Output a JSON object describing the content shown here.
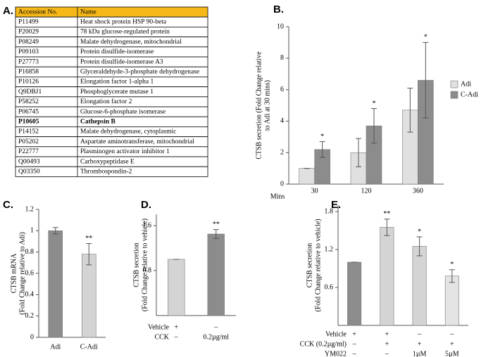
{
  "table": {
    "title": "A.",
    "header": [
      "Accession No.",
      "Name"
    ],
    "header_color": "#f5b818",
    "highlight_row": 10,
    "highlight_color": "#e02020",
    "rows": [
      [
        "P11499",
        "Heat shock protein HSP 90-beta"
      ],
      [
        "P20029",
        "78 kDa glucose-regulated protein"
      ],
      [
        "P08249",
        "Malate dehydrogenase, mitochondrial"
      ],
      [
        "P09103",
        "Protein disulfide-isomerase"
      ],
      [
        "P27773",
        "Protein disulfide-isomerase A3"
      ],
      [
        "P16858",
        "Glyceraldehyde-3-phosphate dehydrogenase"
      ],
      [
        "P10126",
        "Elongation factor 1-alpha 1"
      ],
      [
        "Q9DBJ1",
        "Phosphoglycerate mutase 1"
      ],
      [
        "P58252",
        "Elongation factor 2"
      ],
      [
        "P06745",
        "Glucose-6-phosphate isomerase"
      ],
      [
        "P10605",
        "Cathepsin B"
      ],
      [
        "P14152",
        "Malate dehydrogenase, cytoplasmic"
      ],
      [
        "P05202",
        "Aspartate aminotransferase, mitochondrial"
      ],
      [
        "P22777",
        "Plasminogen activator inhibitor 1"
      ],
      [
        "Q00493",
        "Carboxypeptidase E"
      ],
      [
        "Q03350",
        "Thrombospondin-2"
      ]
    ]
  },
  "chart_data": [
    {
      "type": "bar",
      "title": "B.",
      "xlabel": "Mins",
      "ylabel": [
        "CTSB secretion  (Fold Change relative",
        "to Adi at 30 mins)"
      ],
      "categories": [
        "30",
        "120",
        "360"
      ],
      "ylim": [
        0,
        10
      ],
      "yticks": [
        0,
        2,
        4,
        6,
        8,
        10
      ],
      "legend": "right",
      "series": [
        {
          "name": "Adi",
          "color": "#e0e0e0",
          "values": [
            1,
            2.0,
            4.7
          ],
          "errors": [
            0,
            0.9,
            1.4
          ]
        },
        {
          "name": "C-Adi",
          "color": "#8c8c8c",
          "values": [
            2.2,
            3.7,
            6.6
          ],
          "errors": [
            0.5,
            1.1,
            2.4
          ],
          "annotations": [
            "*",
            "*",
            "*"
          ]
        }
      ]
    },
    {
      "type": "bar",
      "title": "C.",
      "ylabel": [
        "CTSB mRNA",
        "(Fold Change relative to Adi)"
      ],
      "categories": [
        "Adi",
        "C-Adi"
      ],
      "ylim": [
        0,
        1.2
      ],
      "yticks": [
        0,
        0.2,
        0.4,
        0.6,
        0.8,
        1,
        1.2
      ],
      "series": [
        {
          "colors": [
            "#8c8c8c",
            "#d4d4d4"
          ],
          "values": [
            1.0,
            0.78
          ],
          "errors": [
            0.03,
            0.1
          ],
          "annotations": [
            null,
            "**"
          ]
        }
      ]
    },
    {
      "type": "bar",
      "title": "D.",
      "ylabel": [
        "CTSB secretion",
        "(Fold Change relative to vehicle)"
      ],
      "ylim": [
        0,
        1.8
      ],
      "yticks": [
        0.8,
        1.6
      ],
      "conditions": [
        {
          "name": "Vehicle",
          "values": [
            "+",
            "–"
          ]
        },
        {
          "name": "CCK",
          "values": [
            "–",
            "0.2µg/ml"
          ]
        }
      ],
      "series": [
        {
          "colors": [
            "#d4d4d4",
            "#8c8c8c"
          ],
          "values": [
            1.0,
            1.45
          ],
          "errors": [
            0,
            0.08
          ],
          "annotations": [
            null,
            "**"
          ]
        }
      ]
    },
    {
      "type": "bar",
      "title": "E.",
      "ylabel": [
        "CTSB secretion",
        "(Fold Change relative to vehicle)"
      ],
      "ylim": [
        0,
        1.9
      ],
      "yticks": [
        0.6,
        1.2,
        1.8
      ],
      "conditions": [
        {
          "name": "Vehicle",
          "values": [
            "+",
            "+",
            "–",
            "–"
          ]
        },
        {
          "name": "CCK (0.2µg/ml)",
          "values": [
            "–",
            "+",
            "+",
            "+"
          ]
        },
        {
          "name": "YM022",
          "values": [
            "–",
            "–",
            "1µM",
            "5µM"
          ]
        }
      ],
      "series": [
        {
          "colors": [
            "#8c8c8c",
            "#d4d4d4",
            "#d4d4d4",
            "#e4e4e4"
          ],
          "values": [
            1.0,
            1.55,
            1.25,
            0.78
          ],
          "errors": [
            0,
            0.13,
            0.15,
            0.1
          ],
          "annotations": [
            null,
            "**",
            "*",
            "*"
          ]
        }
      ]
    }
  ]
}
